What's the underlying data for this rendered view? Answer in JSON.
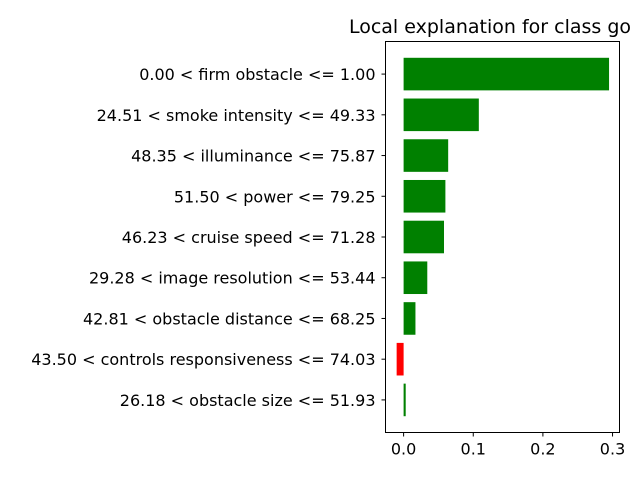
{
  "chart_data": {
    "type": "bar",
    "orientation": "horizontal",
    "title": "Local explanation for class go",
    "xlabel": "",
    "ylabel": "",
    "xlim": [
      -0.026,
      0.31
    ],
    "xticks": [
      0.0,
      0.1,
      0.2,
      0.3
    ],
    "xtick_labels": [
      "0.0",
      "0.1",
      "0.2",
      "0.3"
    ],
    "grid": false,
    "legend": "none",
    "colors": {
      "positive": "#008000",
      "negative": "#ff0000"
    },
    "categories": [
      "0.00 < firm obstacle <= 1.00",
      "24.51 < smoke intensity <= 49.33",
      "48.35 < illuminance <= 75.87",
      "51.50 < power <= 79.25",
      "46.23 < cruise speed <= 71.28",
      "29.28 < image resolution <= 53.44",
      "42.81 < obstacle distance <= 68.25",
      "43.50 < controls responsiveness <= 74.03",
      "26.18 < obstacle size <= 51.93"
    ],
    "values": [
      0.295,
      0.108,
      0.064,
      0.06,
      0.058,
      0.034,
      0.017,
      -0.01,
      0.003
    ]
  }
}
